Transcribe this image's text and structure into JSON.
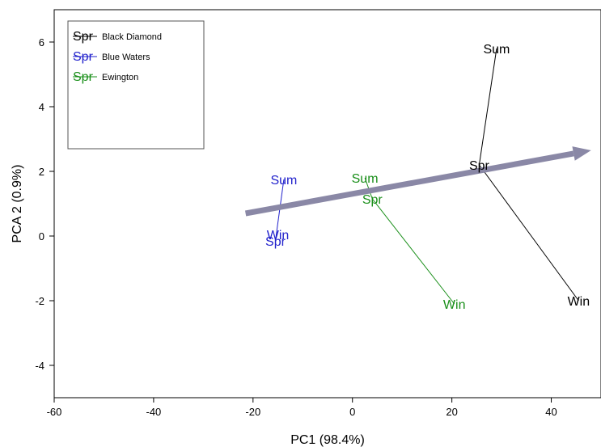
{
  "chart_data": {
    "type": "scatter",
    "xlabel": "PC1 (98.4%)",
    "ylabel": "PCA 2 (0.9%)",
    "xlim": [
      -60,
      50
    ],
    "ylim": [
      -5,
      7
    ],
    "x_ticks": [
      -60,
      -40,
      -20,
      0,
      20,
      40
    ],
    "y_ticks": [
      -4,
      -2,
      0,
      2,
      4,
      6
    ],
    "grid": false,
    "legend_position": "top-left",
    "series": [
      {
        "name": "Black Diamond",
        "color": "#000000",
        "symbol": "Spr",
        "points": [
          {
            "label": "Sum",
            "x": 29.0,
            "y": 5.8
          },
          {
            "label": "Spr",
            "x": 25.5,
            "y": 2.2
          },
          {
            "label": "Win",
            "x": 45.5,
            "y": -2.0
          }
        ]
      },
      {
        "name": "Blue Waters",
        "color": "#2222cc",
        "symbol": "Spr",
        "points": [
          {
            "label": "Sum",
            "x": -13.8,
            "y": 1.75
          },
          {
            "label": "Win",
            "x": -15.0,
            "y": 0.05
          },
          {
            "label": "Spr",
            "x": -15.5,
            "y": -0.15
          }
        ]
      },
      {
        "name": "Ewington",
        "color": "#1a8f1a",
        "symbol": "Spr",
        "points": [
          {
            "label": "Sum",
            "x": 2.5,
            "y": 1.8
          },
          {
            "label": "Spr",
            "x": 4.0,
            "y": 1.15
          },
          {
            "label": "Win",
            "x": 20.5,
            "y": -2.1
          }
        ]
      }
    ],
    "paths": [
      {
        "series": "Black Diamond",
        "from": [
          29.0,
          5.8
        ],
        "to": [
          25.5,
          2.2
        ]
      },
      {
        "series": "Black Diamond",
        "from": [
          25.5,
          2.2
        ],
        "to": [
          45.5,
          -2.0
        ]
      },
      {
        "series": "Blue Waters",
        "from": [
          -13.8,
          1.75
        ],
        "to": [
          -15.5,
          -0.15
        ]
      },
      {
        "series": "Ewington",
        "from": [
          2.5,
          1.8
        ],
        "to": [
          4.0,
          1.15
        ]
      },
      {
        "series": "Ewington",
        "from": [
          4.0,
          1.15
        ],
        "to": [
          20.5,
          -2.1
        ]
      }
    ],
    "arrow": {
      "from": [
        -21.5,
        0.7
      ],
      "to": [
        48,
        2.65
      ],
      "color": "#8a88a6"
    }
  }
}
